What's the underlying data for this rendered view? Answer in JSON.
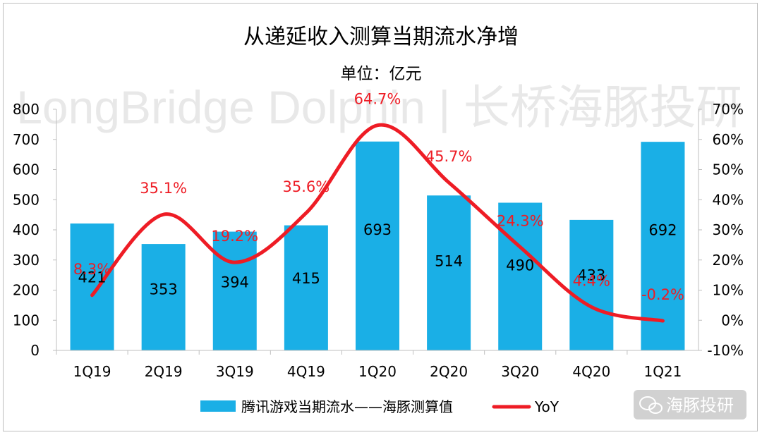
{
  "chart_data": {
    "type": "bar",
    "title": "从递延收入测算当期流水净增",
    "subtitle": "单位：亿元",
    "categories": [
      "1Q19",
      "2Q19",
      "3Q19",
      "4Q19",
      "1Q20",
      "2Q20",
      "3Q20",
      "4Q20",
      "1Q21"
    ],
    "series": [
      {
        "name": "腾讯游戏当期流水——海豚测算值",
        "type": "bar",
        "axis": "left",
        "color": "#1aafe6",
        "values": [
          421,
          353,
          394,
          415,
          693,
          514,
          490,
          433,
          692
        ]
      },
      {
        "name": "YoY",
        "type": "line",
        "axis": "right",
        "color": "#ee1c25",
        "values": [
          8.3,
          35.1,
          19.2,
          35.6,
          64.7,
          45.7,
          24.3,
          4.4,
          -0.2
        ],
        "labels": [
          "8.3%",
          "35.1%",
          "19.2%",
          "35.6%",
          "64.7%",
          "45.7%",
          "24.3%",
          "4.4%",
          "-0.2%"
        ]
      }
    ],
    "y_left": {
      "min": 0,
      "max": 800,
      "ticks": [
        "0",
        "100",
        "200",
        "300",
        "400",
        "500",
        "600",
        "700",
        "800"
      ]
    },
    "y_right": {
      "min": -10,
      "max": 70,
      "ticks": [
        "-10%",
        "0%",
        "10%",
        "20%",
        "30%",
        "40%",
        "50%",
        "60%",
        "70%"
      ]
    },
    "grid": false,
    "legend": "bottom"
  },
  "watermark": "LongBridge Dolphin | 长桥海豚投研",
  "brand": "海豚投研"
}
